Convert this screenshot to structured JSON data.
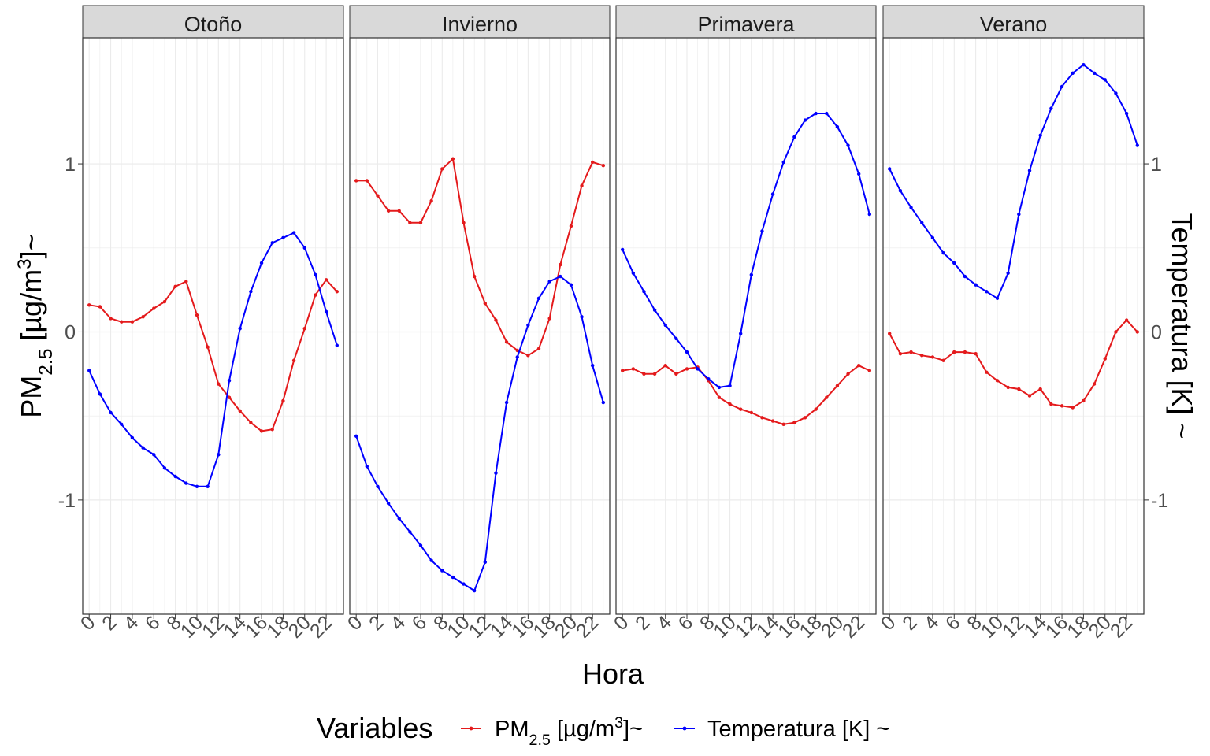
{
  "chart_data": {
    "type": "line",
    "facets": [
      "Otoño",
      "Invierno",
      "Primavera",
      "Verano"
    ],
    "x": [
      0,
      1,
      2,
      3,
      4,
      5,
      6,
      7,
      8,
      9,
      10,
      11,
      12,
      13,
      14,
      15,
      16,
      17,
      18,
      19,
      20,
      21,
      22,
      23
    ],
    "x_tick_labels": [
      "0",
      "2",
      "4",
      "6",
      "8",
      "10",
      "12",
      "14",
      "16",
      "18",
      "20",
      "22"
    ],
    "xlabel": "Hora",
    "ylabel_left": {
      "main": "PM",
      "sub": "2.5",
      "rest": " [µg/m",
      "sup": "3",
      "end": "]~"
    },
    "ylabel_right": "Temperatura [K] ~",
    "ylim": [
      -1.68,
      1.75
    ],
    "y_ticks": [
      -1,
      0,
      1
    ],
    "y_tick_labels": [
      "-1",
      "0",
      "1"
    ],
    "grid": true,
    "legend": {
      "position": "bottom",
      "title": "Variables",
      "pm_label": {
        "main": "PM",
        "sub": "2.5",
        "rest": " [µg/m",
        "sup": "3",
        "end": "]~"
      },
      "temp_label": "Temperatura [K] ~"
    },
    "colors": {
      "pm25": "#e41a1c",
      "temp": "#0000ff",
      "strip_bg": "#d9d9d9",
      "grid": "#ebebeb"
    },
    "series": {
      "Otoño": {
        "pm25": [
          0.16,
          0.15,
          0.08,
          0.06,
          0.06,
          0.09,
          0.14,
          0.18,
          0.27,
          0.3,
          0.1,
          -0.09,
          -0.31,
          -0.39,
          -0.47,
          -0.54,
          -0.59,
          -0.58,
          -0.41,
          -0.17,
          0.02,
          0.22,
          0.31,
          0.24
        ],
        "temp": [
          -0.23,
          -0.37,
          -0.48,
          -0.55,
          -0.63,
          -0.69,
          -0.73,
          -0.81,
          -0.86,
          -0.9,
          -0.92,
          -0.92,
          -0.73,
          -0.29,
          0.02,
          0.24,
          0.41,
          0.53,
          0.56,
          0.59,
          0.5,
          0.34,
          0.12,
          -0.08
        ]
      },
      "Invierno": {
        "pm25": [
          0.9,
          0.9,
          0.81,
          0.72,
          0.72,
          0.65,
          0.65,
          0.78,
          0.97,
          1.03,
          0.65,
          0.33,
          0.17,
          0.07,
          -0.06,
          -0.11,
          -0.14,
          -0.1,
          0.08,
          0.4,
          0.63,
          0.87,
          1.01,
          0.99
        ],
        "temp": [
          -0.62,
          -0.8,
          -0.92,
          -1.02,
          -1.11,
          -1.19,
          -1.27,
          -1.36,
          -1.42,
          -1.46,
          -1.5,
          -1.54,
          -1.37,
          -0.84,
          -0.42,
          -0.15,
          0.04,
          0.2,
          0.3,
          0.33,
          0.28,
          0.09,
          -0.2,
          -0.42
        ]
      },
      "Primavera": {
        "pm25": [
          -0.23,
          -0.22,
          -0.25,
          -0.25,
          -0.2,
          -0.25,
          -0.22,
          -0.21,
          -0.29,
          -0.39,
          -0.43,
          -0.46,
          -0.48,
          -0.51,
          -0.53,
          -0.55,
          -0.54,
          -0.51,
          -0.46,
          -0.39,
          -0.32,
          -0.25,
          -0.2,
          -0.23
        ],
        "temp": [
          0.49,
          0.35,
          0.24,
          0.13,
          0.04,
          -0.04,
          -0.12,
          -0.22,
          -0.28,
          -0.33,
          -0.32,
          -0.01,
          0.34,
          0.6,
          0.82,
          1.01,
          1.16,
          1.26,
          1.3,
          1.3,
          1.22,
          1.11,
          0.94,
          0.7
        ]
      },
      "Verano": {
        "pm25": [
          -0.01,
          -0.13,
          -0.12,
          -0.14,
          -0.15,
          -0.17,
          -0.12,
          -0.12,
          -0.13,
          -0.24,
          -0.29,
          -0.33,
          -0.34,
          -0.38,
          -0.34,
          -0.43,
          -0.44,
          -0.45,
          -0.41,
          -0.31,
          -0.16,
          0.0,
          0.07,
          0.0
        ],
        "temp": [
          0.97,
          0.84,
          0.74,
          0.65,
          0.56,
          0.47,
          0.41,
          0.33,
          0.28,
          0.24,
          0.2,
          0.35,
          0.7,
          0.96,
          1.17,
          1.33,
          1.46,
          1.54,
          1.59,
          1.54,
          1.5,
          1.42,
          1.3,
          1.11
        ]
      }
    }
  }
}
